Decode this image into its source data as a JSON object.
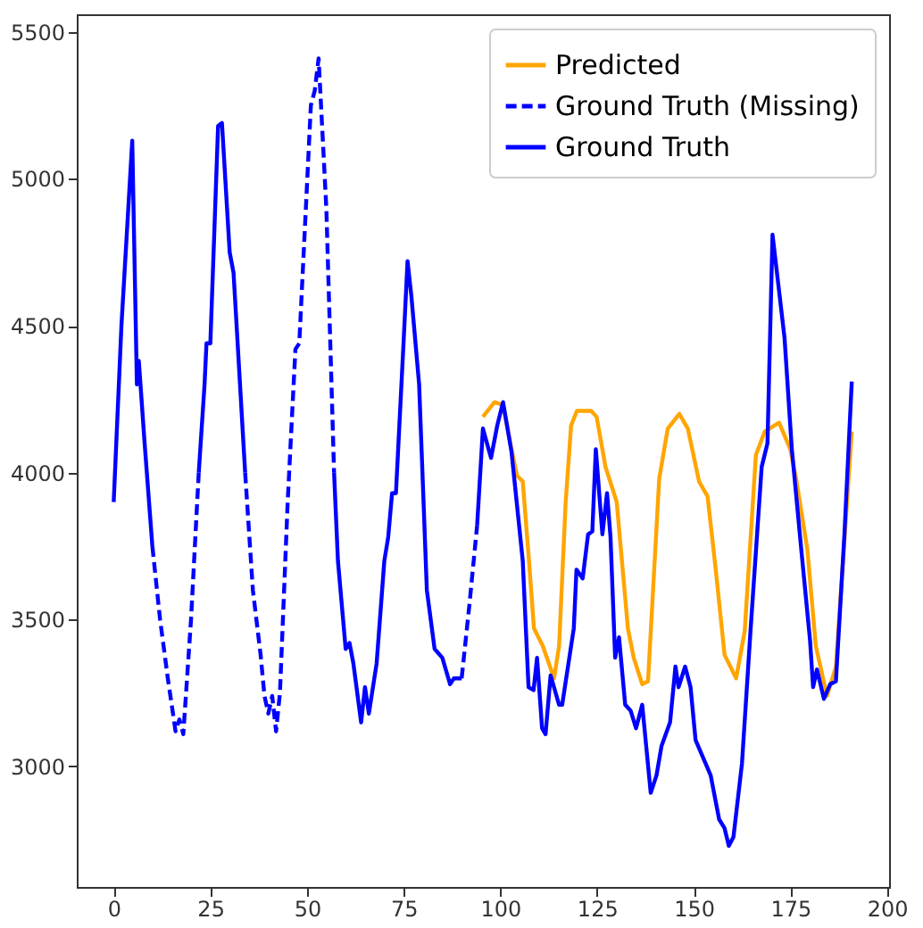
{
  "chart_data": {
    "type": "line",
    "xlim": [
      -9.55,
      200.55
    ],
    "ylim": [
      2590,
      5560
    ],
    "xticks": [
      0,
      25,
      50,
      75,
      100,
      125,
      150,
      175,
      200
    ],
    "yticks": [
      3000,
      3500,
      4000,
      4500,
      5000,
      5500
    ],
    "grid": false,
    "legend": "top right",
    "series": [
      {
        "name": "Predicted",
        "color": "#ffa500",
        "line_style": "solid",
        "x": [
          95.5,
          98.5,
          100.7,
          102.9,
          104.3,
          105.8,
          107.3,
          108.7,
          111,
          113.9,
          115.2,
          116.9,
          118.3,
          119.8,
          123.5,
          124.9,
          127.2,
          130.1,
          133,
          134.5,
          136.7,
          138.2,
          141.1,
          143.3,
          146.3,
          148.5,
          151.4,
          153.6,
          155.8,
          158,
          161,
          163.2,
          166.1,
          168.4,
          172.1,
          175,
          176.5,
          179.4,
          181.6,
          184.5,
          186.8,
          190.9
        ],
        "values": [
          4190,
          4240,
          4230,
          4080,
          3990,
          3970,
          3720,
          3470,
          3410,
          3300,
          3410,
          3900,
          4160,
          4210,
          4210,
          4190,
          4020,
          3900,
          3470,
          3370,
          3280,
          3290,
          3980,
          4150,
          4200,
          4150,
          3970,
          3920,
          3660,
          3380,
          3300,
          3460,
          4060,
          4140,
          4170,
          4080,
          3980,
          3740,
          3410,
          3240,
          3340,
          4140
        ]
      },
      {
        "name": "Ground Truth (Missing)",
        "color": "#0000ff",
        "line_style": "dashed",
        "x": [
          10,
          12,
          14,
          16,
          17,
          18,
          20,
          22,
          28,
          34,
          36,
          38,
          39,
          40,
          41,
          42,
          43,
          45,
          47,
          48,
          51,
          52,
          53,
          55,
          57,
          75,
          90,
          92,
          94
        ],
        "values": [
          3750,
          3500,
          3300,
          3120,
          3160,
          3110,
          3500,
          4000,
          null,
          4000,
          3600,
          3380,
          3240,
          3180,
          3240,
          3120,
          3250,
          3900,
          4420,
          4440,
          5250,
          5300,
          5410,
          4900,
          4000,
          null,
          3300,
          3550,
          3820
        ]
      },
      {
        "name": "Ground Truth",
        "color": "#0000ff",
        "line_style": "solid",
        "x": [
          0,
          2,
          4.8,
          6,
          6.5,
          8,
          10,
          16,
          22,
          23.5,
          24,
          25,
          27,
          28,
          30,
          31,
          34,
          45,
          57,
          58,
          59,
          60,
          61,
          62,
          64,
          65,
          66,
          68,
          70,
          71,
          72,
          73,
          75,
          76,
          77,
          79,
          81,
          83,
          85,
          87,
          88,
          90,
          92,
          94,
          95.5,
          97.6,
          99.2,
          100.7,
          102.9,
          105.8,
          107.3,
          108.6,
          109.5,
          110.8,
          111.7,
          113,
          115.2,
          116,
          119,
          119.7,
          121.3,
          122.7,
          123.8,
          124.7,
          126.4,
          127.6,
          128.5,
          129.7,
          130.7,
          132.3,
          133.7,
          135.1,
          136.7,
          138.9,
          140.4,
          141.7,
          143.9,
          145.3,
          146.1,
          147.8,
          149.2,
          150.5,
          154.4,
          156.6,
          158,
          159.1,
          160.3,
          162.5,
          164.7,
          167.6,
          169.1,
          170.4,
          173.5,
          175.4,
          177.9,
          180.1,
          180.9,
          181.9,
          183.7,
          185.3,
          186.8,
          189,
          190.9
        ],
        "values": [
          3900,
          4500,
          5130,
          4300,
          4380,
          4100,
          3750,
          null,
          4000,
          4300,
          4440,
          4440,
          5180,
          5190,
          4750,
          4680,
          4000,
          null,
          4000,
          3700,
          3550,
          3400,
          3420,
          3350,
          3150,
          3270,
          3180,
          3350,
          3700,
          3780,
          3930,
          3930,
          4450,
          4720,
          4600,
          4300,
          3600,
          3400,
          3370,
          3280,
          3300,
          3300,
          null,
          3820,
          4150,
          4050,
          4160,
          4240,
          4070,
          3700,
          3270,
          3260,
          3370,
          3130,
          3110,
          3310,
          3210,
          3210,
          3470,
          3670,
          3640,
          3790,
          3800,
          4080,
          3790,
          3930,
          3780,
          3370,
          3440,
          3210,
          3190,
          3130,
          3210,
          2910,
          2970,
          3070,
          3150,
          3340,
          3270,
          3340,
          3270,
          3090,
          2970,
          2820,
          2790,
          2730,
          2760,
          3010,
          3460,
          4020,
          4100,
          4810,
          4460,
          4080,
          3730,
          3430,
          3270,
          3330,
          3230,
          3280,
          3290,
          3790,
          4310
        ]
      }
    ]
  }
}
